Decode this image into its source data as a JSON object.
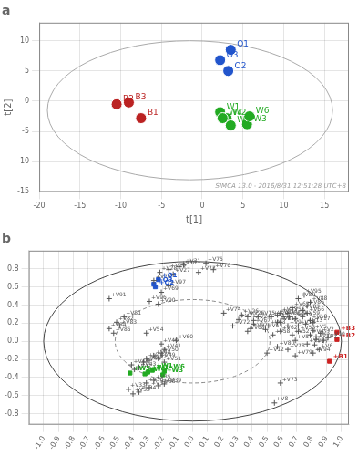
{
  "chart_data": [
    {
      "type": "scatter",
      "title": "a",
      "x_label": "t[1]",
      "y_label": "t[2]",
      "xlim": [
        -20,
        18
      ],
      "ylim": [
        -15,
        13
      ],
      "xticks": [
        -20,
        -15,
        -10,
        -5,
        0,
        5,
        10,
        15
      ],
      "yticks": [
        -15,
        -10,
        -5,
        0,
        5,
        10
      ],
      "grid": true,
      "series": [
        {
          "marker": "circle",
          "x": [
            3.5,
            3.2,
            2.2,
            -7.5,
            -10.5,
            -9.0,
            2.2,
            3.0,
            5.5,
            2.5,
            3.5,
            5.8
          ],
          "values": [
            8.5,
            5.0,
            6.8,
            -2.8,
            -0.5,
            -0.2,
            -1.8,
            -2.8,
            -3.8,
            -2.8,
            -4.0,
            -2.5
          ],
          "colors": [
            "#2255cc",
            "#2255cc",
            "#2255cc",
            "#bb2222",
            "#bb2222",
            "#bb2222",
            "#22aa22",
            "#22aa22",
            "#22aa22",
            "#22aa22",
            "#22aa22",
            "#22aa22"
          ],
          "point_labels": [
            "O1",
            "O2",
            "O3",
            "B1",
            "B2",
            "B3",
            "W1",
            "W2",
            "W3",
            "W4",
            "W5",
            "W6"
          ]
        }
      ],
      "ellipses": [
        {
          "cx": -1.5,
          "cy": -1.5,
          "rx": 17.5,
          "ry": 11.5,
          "color": "#aaaaaa",
          "line_style": "solid"
        }
      ],
      "annotations": [
        {
          "text": "SIMCA 13.0 - 2016/8/31 12:51:28 UTC+8"
        }
      ]
    },
    {
      "type": "scatter",
      "title": "b",
      "xlim": [
        -1.1,
        1.05
      ],
      "ylim": [
        -0.92,
        1.0
      ],
      "xticks": [
        {
          "value": -1,
          "label": "-1.0"
        },
        -0.9,
        -0.8,
        -0.7,
        -0.6,
        -0.5,
        -0.4,
        -0.3,
        -0.2,
        -0.1,
        {
          "value": 0,
          "label": "0.0"
        },
        0.1,
        0.2,
        0.3,
        0.4,
        0.5,
        0.6,
        0.7,
        0.8,
        0.9,
        {
          "value": 1,
          "label": "1.0"
        }
      ],
      "yticks": [
        -0.8,
        -0.6,
        -0.4,
        -0.2,
        {
          "value": 0,
          "label": "0.0"
        },
        0.2,
        0.4,
        0.6,
        0.8
      ],
      "grid": true,
      "series": [
        {
          "marker": "plus",
          "color": "#555555",
          "x": [
            0.88,
            0.86,
            0.83,
            0.79,
            0.81,
            0.85,
            0.82,
            0.55,
            0.64,
            0.91,
            0.59,
            0.5,
            0.76,
            0.83,
            0.44,
            0.71,
            0.81,
            0.79,
            0.69,
            0.65,
            0.57,
            0.53,
            0.59,
            0.41,
            0.37,
            0.33,
            -0.13,
            -0.22,
            -0.16,
            -0.09,
            -0.06,
            -0.4,
            -0.43,
            -0.36,
            -0.26,
            -0.31,
            -0.29,
            -0.23,
            -0.19,
            -0.21,
            -0.19,
            -0.39,
            -0.36,
            -0.41,
            -0.33,
            -0.31,
            -0.29,
            -0.26,
            -0.23,
            -0.21,
            -0.19,
            0.67,
            0.71,
            -0.31,
            0.64,
            0.61,
            0.69,
            0.54,
            0.74,
            -0.11,
            0.57,
            0.59,
            0.51,
            0.49,
            0.67,
            0.77,
            0.41,
            0.37,
            -0.21,
            -0.26,
            0.31,
            0.27,
            0.59,
            0.21,
            0.09,
            0.14,
            0.04,
            0.64,
            0.69,
            0.57,
            -0.46,
            -0.51,
            -0.49,
            -0.56,
            -0.53,
            0.77,
            0.74,
            0.79,
            0.71,
            -0.23,
            -0.56,
            0.39,
            0.77,
            0.81,
            0.75,
            -0.29,
            -0.16
          ],
          "values": [
            0.01,
            0.09,
            0.05,
            0.07,
            0.12,
            -0.09,
            -0.04,
            -0.68,
            0.17,
            0.04,
            0.21,
            -0.13,
            0.19,
            0.02,
            0.27,
            0.17,
            0.21,
            0.23,
            0.25,
            0.27,
            0.29,
            0.27,
            0.31,
            0.23,
            0.27,
            0.29,
            0.74,
            0.76,
            0.79,
            0.82,
            0.84,
            -0.58,
            -0.53,
            -0.56,
            -0.43,
            -0.46,
            -0.51,
            -0.49,
            -0.47,
            -0.03,
            -0.09,
            -0.31,
            -0.29,
            -0.26,
            -0.23,
            -0.19,
            -0.21,
            -0.16,
            -0.19,
            -0.13,
            -0.23,
            0.07,
            0.11,
            0.09,
            0.31,
            0.27,
            0.01,
            0.07,
            0.27,
            0.01,
            0.21,
            0.11,
            0.17,
            0.13,
            0.37,
            0.31,
            0.19,
            0.11,
            0.54,
            0.67,
            0.24,
            0.17,
            -0.46,
            0.31,
            0.86,
            0.79,
            0.76,
            -0.09,
            -0.16,
            -0.06,
            0.27,
            0.21,
            0.17,
            0.14,
            0.09,
            0.39,
            0.34,
            0.43,
            0.47,
            0.41,
            0.47,
            0.14,
            -0.03,
            -0.13,
            0.51,
            0.44,
            0.61
          ],
          "point_labels": [
            "+V1",
            "+V2",
            "+V3",
            "+V4",
            "+V5",
            "+V6",
            "+V7",
            "+V8",
            "+V9",
            "+V10",
            "+V11",
            "+V12",
            "+V13",
            "+V14",
            "+V15",
            "+V16",
            "+V17",
            "+V18",
            "+V19",
            "+V20",
            "+V21",
            "+V22",
            "+V23",
            "+V24",
            "+V25",
            "+V26",
            "+V27",
            "+V28",
            "+V29",
            "+V30",
            "+V31",
            "+V32",
            "+V33",
            "+V34",
            "+V35",
            "+V36",
            "+V37",
            "+V38",
            "+V39",
            "+V40",
            "+V41",
            "+V42",
            "+V43",
            "+V44",
            "+V45",
            "+V46",
            "+V47",
            "+V48",
            "+V49",
            "+V50",
            "+V51",
            "+V52",
            "+V53",
            "+V54",
            "+V55",
            "+V56",
            "+V57",
            "+V58",
            "+V59",
            "+V60",
            "+V61",
            "+V62",
            "+V63",
            "+V64",
            "+V65",
            "+V66",
            "+V67",
            "+V68",
            "+V69",
            "+V70",
            "+V71",
            "+V72",
            "+V73",
            "+V74",
            "+V75",
            "+V76",
            "+V77",
            "+V78",
            "+V79",
            "+V80",
            "+V81",
            "+V82",
            "+V83",
            "+V84",
            "+V85",
            "+V86",
            "+V87",
            "+V88",
            "+V89",
            "+V90",
            "+V91",
            "+V92",
            "+V93",
            "+V94",
            "+V95",
            "+V96",
            "+V97"
          ]
        },
        {
          "marker": "square",
          "x": [
            -0.23,
            -0.25,
            -0.26,
            0.92,
            0.97,
            0.97,
            -0.27,
            -0.3,
            -0.2,
            -0.32,
            -0.42,
            -0.19
          ],
          "values": [
            0.68,
            0.6,
            0.63,
            -0.22,
            0.02,
            0.1,
            -0.32,
            -0.34,
            -0.37,
            -0.36,
            -0.35,
            -0.33
          ],
          "colors": [
            "#2255cc",
            "#2255cc",
            "#2255cc",
            "#cc2222",
            "#cc2222",
            "#cc2222",
            "#22aa22",
            "#22aa22",
            "#22aa22",
            "#22aa22",
            "#22aa22",
            "#22aa22"
          ],
          "point_labels": [
            "+O1",
            "+O2",
            "+O3",
            "+B1",
            "+B2",
            "+B3",
            "+W1",
            "+W2",
            "+W3",
            "+W4",
            "+W5",
            "+W6"
          ]
        }
      ],
      "ellipses": [
        {
          "cx": 0,
          "cy": 0,
          "rx": 1.0,
          "ry": 0.88,
          "color": "#444444",
          "line_style": "solid"
        },
        {
          "cx": 0,
          "cy": 0,
          "rx": 0.52,
          "ry": 0.46,
          "color": "#888888",
          "line_style": "dashed"
        }
      ]
    }
  ]
}
